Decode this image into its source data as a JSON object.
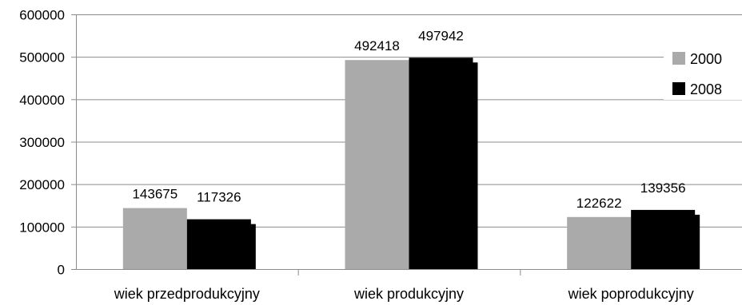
{
  "chart_data": {
    "type": "bar",
    "categories": [
      "wiek przedprodukcyjny",
      "wiek produkcyjny",
      "wiek poprodukcyjny"
    ],
    "series": [
      {
        "name": "2000",
        "values": [
          143675,
          492418,
          122622
        ],
        "color": "#aaaaaa"
      },
      {
        "name": "2008",
        "values": [
          117326,
          497942,
          139356
        ],
        "color": "#000000"
      }
    ],
    "ylim": [
      0,
      600000
    ],
    "yticks": [
      0,
      100000,
      200000,
      300000,
      400000,
      500000,
      600000
    ],
    "grid": true,
    "legend": "right",
    "data_labels": true
  }
}
